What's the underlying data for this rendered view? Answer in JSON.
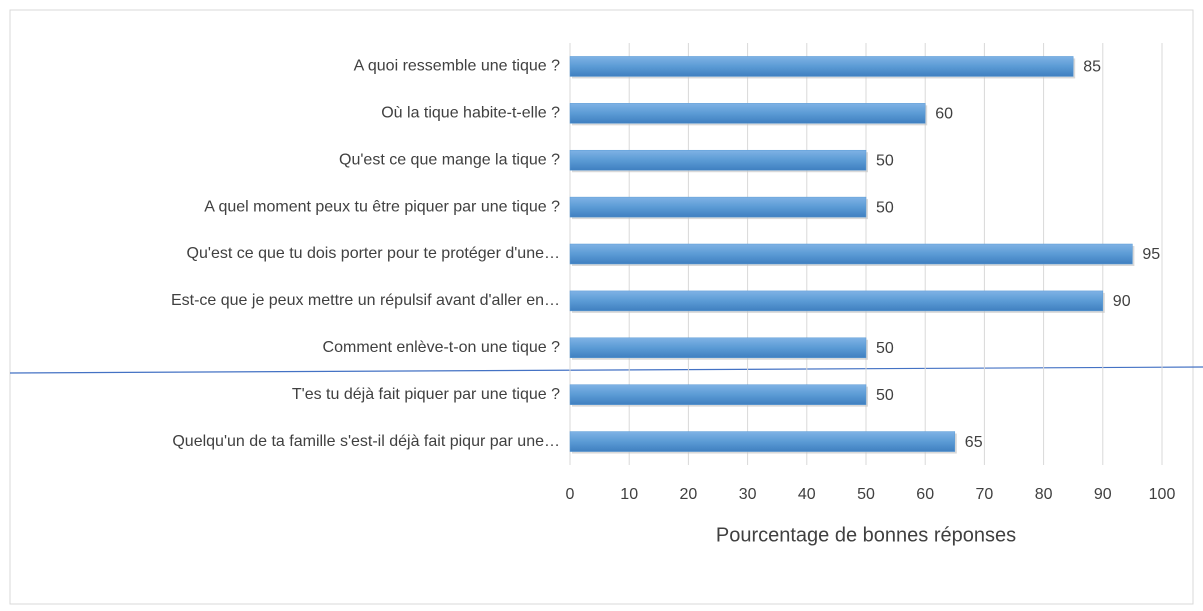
{
  "chart_data": {
    "type": "bar",
    "orientation": "horizontal",
    "categories": [
      "A quoi ressemble une tique  ?",
      "Où la tique habite-t-elle ?",
      "Qu'est ce que mange la tique ?",
      "A quel moment peux tu être piquer par une tique ?",
      "Qu'est ce que tu dois porter pour te protéger d'une…",
      "Est-ce que je peux mettre un répulsif avant d'aller en…",
      "Comment enlève-t-on une tique ?",
      "T'es tu déjà fait piquer par une tique ?",
      "Quelqu'un de ta famille s'est-il déjà fait piqur par une…"
    ],
    "values": [
      85,
      60,
      50,
      50,
      95,
      90,
      50,
      50,
      65
    ],
    "color": "#5b9bd5",
    "xlabel": "Pourcentage de bonnes réponses",
    "xlim": [
      0,
      100
    ],
    "xticks": [
      0,
      10,
      20,
      30,
      40,
      50,
      60,
      70,
      80,
      90,
      100
    ],
    "grid": true
  }
}
